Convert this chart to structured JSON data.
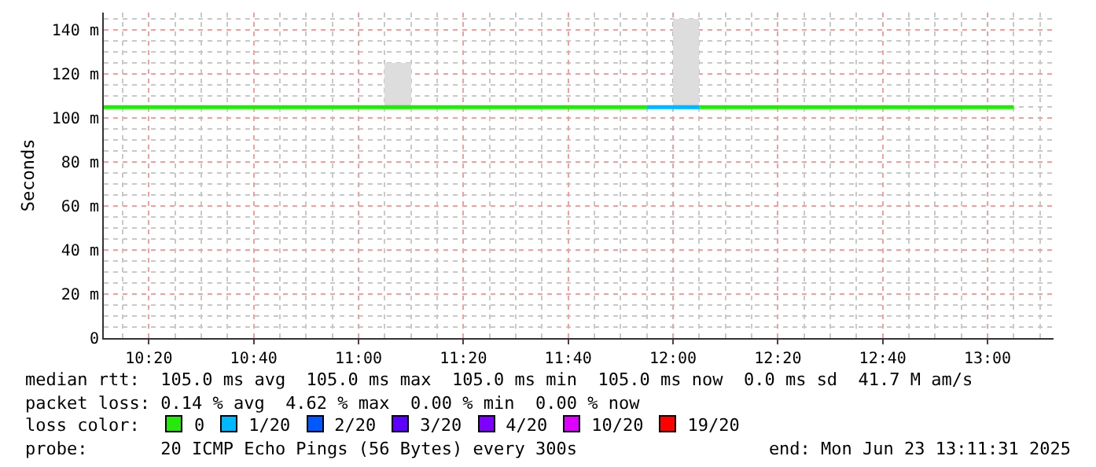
{
  "chart_data": {
    "type": "line",
    "ylabel": "Seconds",
    "legend_title": "loss color:",
    "legend": "bottom",
    "grid": true,
    "marker": "none",
    "line_style": "solid",
    "xlim": [
      10.19,
      13.21
    ],
    "xticks": [
      {
        "value": 10.3333,
        "label": "10:20"
      },
      {
        "value": 10.6667,
        "label": "10:40"
      },
      {
        "value": 11,
        "label": "11:00"
      },
      {
        "value": 11.3333,
        "label": "11:20"
      },
      {
        "value": 11.6667,
        "label": "11:40"
      },
      {
        "value": 12,
        "label": "12:00"
      },
      {
        "value": 12.3333,
        "label": "12:20"
      },
      {
        "value": 12.6667,
        "label": "12:40"
      },
      {
        "value": 13,
        "label": "13:00"
      }
    ],
    "ylim": [
      0,
      148
    ],
    "yticks": [
      0,
      {
        "value": 20,
        "label": "20 m"
      },
      {
        "value": 40,
        "label": "40 m"
      },
      {
        "value": 60,
        "label": "60 m"
      },
      {
        "value": 80,
        "label": "80 m"
      },
      {
        "value": 100,
        "label": "100 m"
      },
      {
        "value": 120,
        "label": "120 m"
      },
      {
        "value": 140,
        "label": "140 m"
      }
    ],
    "series": [
      {
        "type": "bar",
        "color": "#dddddd",
        "x": [
          11.125,
          12.0417
        ],
        "base": [
          104,
          104
        ],
        "values": [
          21,
          41
        ]
      },
      {
        "name": "0",
        "color": "#26e80c",
        "x": [
          10.19,
          11.9167,
          11.92,
          12.0833,
          13.0833
        ],
        "values": [
          105,
          105,
          null,
          105,
          105
        ]
      },
      {
        "name": "1/20",
        "color": "#00b8ff",
        "x": [
          11.9167,
          12.0833
        ],
        "values": [
          105,
          105
        ]
      },
      {
        "name": "2/20",
        "color": "#0059ff"
      },
      {
        "name": "3/20",
        "color": "#5e00ff"
      },
      {
        "name": "4/20",
        "color": "#7e00ff"
      },
      {
        "name": "10/20",
        "color": "#dd00ff"
      },
      {
        "name": "19/20",
        "color": "#ff0000"
      }
    ],
    "annotations": [
      "median rtt:  105.0 ms avg  105.0 ms max  105.0 ms min  105.0 ms now  0.0 ms sd  41.7 M am/s",
      "packet loss: 0.14 % avg  4.62 % max  0.00 % min  0.00 % now",
      "probe:       20 ICMP Echo Pings (56 Bytes) every 300s",
      "end: Mon Jun 23 13:11:31 2025"
    ]
  }
}
